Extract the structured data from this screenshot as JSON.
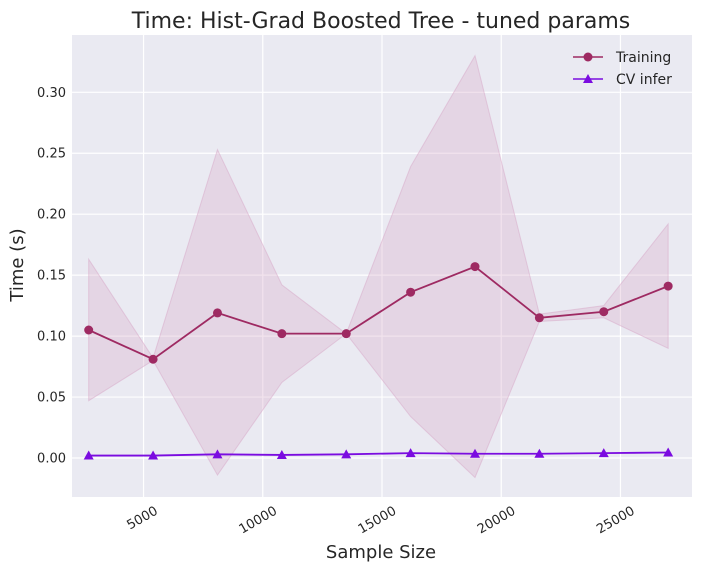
{
  "chart_data": {
    "type": "line",
    "title": "Time: Hist-Grad Boosted Tree - tuned params",
    "xlabel": "Sample Size",
    "ylabel": "Time (s)",
    "xlim": [
      2000,
      28000
    ],
    "ylim": [
      -0.032,
      0.347
    ],
    "x_ticks": [
      5000,
      10000,
      15000,
      20000,
      25000
    ],
    "y_ticks": [
      0.0,
      0.05,
      0.1,
      0.15,
      0.2,
      0.25,
      0.3
    ],
    "x_tick_labels": [
      "5000",
      "10000",
      "15000",
      "20000",
      "25000"
    ],
    "y_tick_labels": [
      "0.00",
      "0.05",
      "0.10",
      "0.15",
      "0.20",
      "0.25",
      "0.30"
    ],
    "grid": true,
    "legend_position": "top-right",
    "x": [
      2700,
      5400,
      8100,
      10800,
      13500,
      16200,
      18900,
      21600,
      24300,
      27000
    ],
    "series": [
      {
        "name": "Training",
        "marker": "circle",
        "color": "#9e2a62",
        "values": [
          0.105,
          0.081,
          0.119,
          0.102,
          0.102,
          0.136,
          0.157,
          0.115,
          0.12,
          0.141
        ],
        "band_upper": [
          0.163,
          0.082,
          0.253,
          0.142,
          0.102,
          0.239,
          0.33,
          0.118,
          0.125,
          0.192
        ],
        "band_lower": [
          0.047,
          0.08,
          -0.014,
          0.062,
          0.102,
          0.034,
          -0.016,
          0.112,
          0.115,
          0.09
        ],
        "band_color": "#d8a8c8"
      },
      {
        "name": "CV infer",
        "marker": "triangle",
        "color": "#7b0ce0",
        "values": [
          0.002,
          0.002,
          0.003,
          0.0025,
          0.003,
          0.004,
          0.0035,
          0.0035,
          0.004,
          0.0045
        ]
      }
    ]
  }
}
